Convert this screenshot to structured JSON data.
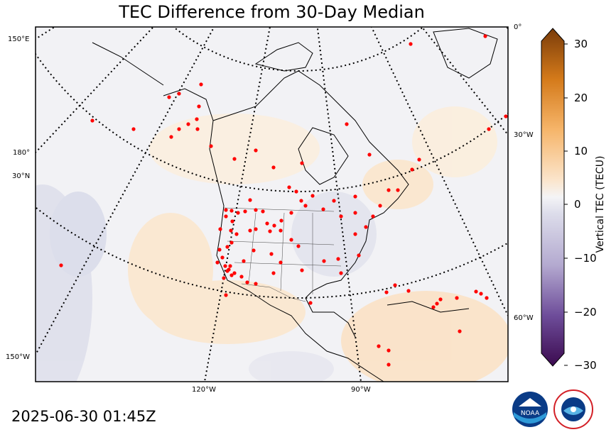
{
  "title": "TEC Difference from 30-Day Median",
  "timestamp": "2025-06-30 01:45Z",
  "colorbar": {
    "label": "Vertical TEC (TECU)",
    "ticks": [
      "30",
      "20",
      "10",
      "0",
      "−10",
      "−20",
      "−30"
    ],
    "min": -30,
    "max": 30,
    "colors": {
      "low": "#3b0a4f",
      "mid": "#f4f4f6",
      "high": "#7a3c0a"
    }
  },
  "grid_labels": {
    "lon_150e": "150°E",
    "lon_180": "180°",
    "lat_30n": "30°N",
    "lon_150w": "150°W",
    "lon_0": "0°",
    "lon_30w": "30°W",
    "lon_60w": "60°W",
    "lon_120w": "120°W",
    "lon_90w": "90°W"
  },
  "map": {
    "projection": "polar stereographic (North America)",
    "station_color": "#ff0000",
    "coast_color": "#000000"
  },
  "logos": [
    "noaa-logo",
    "national-weather-service-logo"
  ],
  "logo_text": {
    "noaa": "NOAA",
    "nws": "NATIONAL WEATHER SERVICE"
  }
}
